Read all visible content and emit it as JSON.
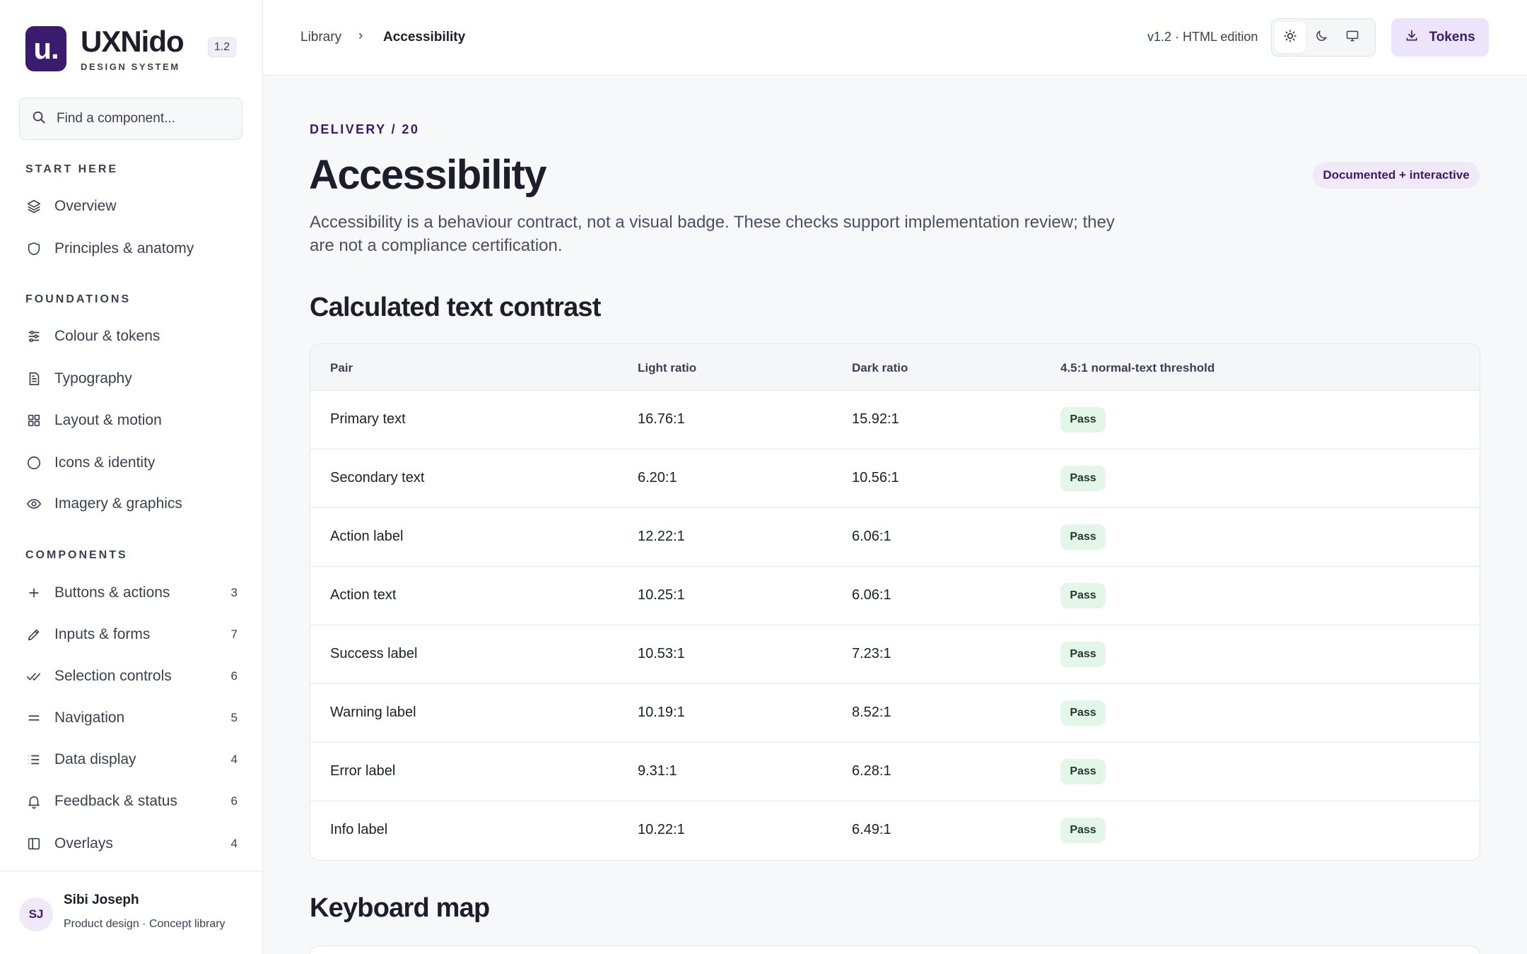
{
  "brand": {
    "logo": "u.",
    "name": "UXNido",
    "subtitle": "DESIGN SYSTEM",
    "version": "1.2"
  },
  "search": {
    "placeholder": "Find a component..."
  },
  "nav": {
    "start_here": {
      "title": "START HERE",
      "items": [
        {
          "label": "Overview",
          "icon": "layers-icon"
        },
        {
          "label": "Principles & anatomy",
          "icon": "shield-icon"
        }
      ]
    },
    "foundations": {
      "title": "FOUNDATIONS",
      "items": [
        {
          "label": "Colour & tokens",
          "icon": "sliders-icon"
        },
        {
          "label": "Typography",
          "icon": "document-icon"
        },
        {
          "label": "Layout & motion",
          "icon": "grid-icon"
        },
        {
          "label": "Icons & identity",
          "icon": "circle-icon"
        },
        {
          "label": "Imagery & graphics",
          "icon": "eye-icon"
        }
      ]
    },
    "components": {
      "title": "COMPONENTS",
      "items": [
        {
          "label": "Buttons & actions",
          "count": "3",
          "icon": "plus-icon"
        },
        {
          "label": "Inputs & forms",
          "count": "7",
          "icon": "pencil-icon"
        },
        {
          "label": "Selection controls",
          "count": "6",
          "icon": "double-check-icon"
        },
        {
          "label": "Navigation",
          "count": "5",
          "icon": "menu-icon"
        },
        {
          "label": "Data display",
          "count": "4",
          "icon": "list-icon"
        },
        {
          "label": "Feedback & status",
          "count": "6",
          "icon": "bell-icon"
        },
        {
          "label": "Overlays",
          "count": "4",
          "icon": "panel-icon"
        }
      ]
    }
  },
  "user": {
    "initials": "SJ",
    "name": "Sibi Joseph",
    "role": "Product design · Concept library"
  },
  "topbar": {
    "breadcrumb_root": "Library",
    "breadcrumb_sep": "›",
    "breadcrumb_current": "Accessibility",
    "edition": "v1.2 · HTML edition",
    "theme_options": [
      "sun-icon",
      "moon-icon",
      "monitor-icon"
    ],
    "theme_selected": "light",
    "tokens_label": "Tokens"
  },
  "page": {
    "eyebrow": "DELIVERY / 20",
    "title": "Accessibility",
    "status": "Documented + interactive",
    "intro": "Accessibility is a behaviour contract, not a visual badge. These checks support implementation review; they are not a compliance certification.",
    "contrast_heading": "Calculated text contrast",
    "keyboard_heading": "Keyboard map"
  },
  "contrast_table": {
    "columns": [
      "Pair",
      "Light ratio",
      "Dark ratio",
      "4.5:1 normal-text threshold"
    ],
    "rows": [
      {
        "pair": "Primary text",
        "light": "16.76:1",
        "dark": "15.92:1",
        "result": "Pass"
      },
      {
        "pair": "Secondary text",
        "light": "6.20:1",
        "dark": "10.56:1",
        "result": "Pass"
      },
      {
        "pair": "Action label",
        "light": "12.22:1",
        "dark": "6.06:1",
        "result": "Pass"
      },
      {
        "pair": "Action text",
        "light": "10.25:1",
        "dark": "6.06:1",
        "result": "Pass"
      },
      {
        "pair": "Success label",
        "light": "10.53:1",
        "dark": "7.23:1",
        "result": "Pass"
      },
      {
        "pair": "Warning label",
        "light": "10.19:1",
        "dark": "8.52:1",
        "result": "Pass"
      },
      {
        "pair": "Error label",
        "light": "9.31:1",
        "dark": "6.28:1",
        "result": "Pass"
      },
      {
        "pair": "Info label",
        "light": "10.22:1",
        "dark": "6.49:1",
        "result": "Pass"
      }
    ]
  },
  "colors": {
    "brand": "#3b1b6e",
    "accent_bg": "#ece4fa",
    "pass_bg": "#e4f5ea",
    "text": "#1c1f2b",
    "muted": "#3b3f52"
  }
}
